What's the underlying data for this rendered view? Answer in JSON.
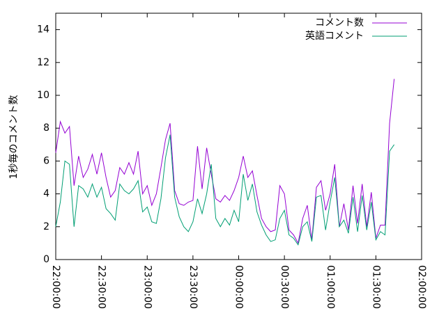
{
  "chart_data": {
    "type": "line",
    "y_label": "1秒毎のコメント数",
    "x": [
      "22:00:00",
      "22:03:00",
      "22:06:00",
      "22:09:00",
      "22:12:00",
      "22:15:00",
      "22:18:00",
      "22:21:00",
      "22:24:00",
      "22:27:00",
      "22:30:00",
      "22:33:00",
      "22:36:00",
      "22:39:00",
      "22:42:00",
      "22:45:00",
      "22:48:00",
      "22:51:00",
      "22:54:00",
      "22:57:00",
      "23:00:00",
      "23:03:00",
      "23:06:00",
      "23:09:00",
      "23:12:00",
      "23:15:00",
      "23:18:00",
      "23:21:00",
      "23:24:00",
      "23:27:00",
      "23:30:00",
      "23:33:00",
      "23:36:00",
      "23:39:00",
      "23:42:00",
      "23:45:00",
      "23:48:00",
      "23:51:00",
      "23:54:00",
      "23:57:00",
      "00:00:00",
      "00:03:00",
      "00:06:00",
      "00:09:00",
      "00:12:00",
      "00:15:00",
      "00:18:00",
      "00:21:00",
      "00:24:00",
      "00:27:00",
      "00:30:00",
      "00:33:00",
      "00:36:00",
      "00:39:00",
      "00:42:00",
      "00:45:00",
      "00:48:00",
      "00:51:00",
      "00:54:00",
      "00:57:00",
      "01:00:00",
      "01:03:00",
      "01:06:00",
      "01:09:00",
      "01:12:00",
      "01:15:00",
      "01:18:00",
      "01:21:00",
      "01:24:00",
      "01:27:00",
      "01:30:00",
      "01:33:00",
      "01:36:00",
      "01:39:00",
      "01:42:00"
    ],
    "series": [
      {
        "name": "コメント数",
        "color": "#9400d3",
        "values": [
          6.5,
          8.4,
          7.7,
          8.1,
          4.5,
          6.3,
          5.0,
          5.5,
          6.4,
          5.2,
          6.5,
          5.0,
          3.8,
          4.2,
          5.6,
          5.2,
          5.9,
          5.2,
          6.6,
          4.0,
          4.5,
          3.3,
          4.0,
          5.6,
          7.3,
          8.3,
          4.2,
          3.4,
          3.3,
          3.5,
          3.6,
          6.9,
          4.3,
          6.8,
          5.2,
          3.7,
          3.5,
          3.9,
          3.6,
          4.2,
          5.0,
          6.3,
          5.0,
          5.4,
          3.9,
          2.5,
          2.0,
          1.7,
          1.8,
          4.5,
          4.0,
          1.8,
          1.5,
          1.0,
          2.5,
          3.3,
          1.2,
          4.4,
          4.8,
          3.0,
          4.0,
          5.8,
          2.0,
          3.4,
          1.8,
          4.5,
          2.2,
          4.6,
          2.0,
          4.1,
          1.3,
          2.1,
          2.1,
          8.3,
          11.0
        ]
      },
      {
        "name": "英語コメント",
        "color": "#009e73",
        "values": [
          2.0,
          3.5,
          6.0,
          5.8,
          2.0,
          4.5,
          4.3,
          3.8,
          4.6,
          3.8,
          4.4,
          3.1,
          2.8,
          2.4,
          4.6,
          4.2,
          4.0,
          4.3,
          4.8,
          2.9,
          3.2,
          2.3,
          2.2,
          3.7,
          6.2,
          7.6,
          3.8,
          2.6,
          2.0,
          1.7,
          2.3,
          3.7,
          2.8,
          4.0,
          5.8,
          2.5,
          2.0,
          2.5,
          2.1,
          3.0,
          2.3,
          5.2,
          3.6,
          4.6,
          2.9,
          2.1,
          1.5,
          1.1,
          1.2,
          2.5,
          3.0,
          1.5,
          1.3,
          0.9,
          2.0,
          2.3,
          1.1,
          3.8,
          3.9,
          1.8,
          3.5,
          5.0,
          2.0,
          2.4,
          1.6,
          3.8,
          1.7,
          3.9,
          1.8,
          3.5,
          1.2,
          1.7,
          1.5,
          6.6,
          7.0
        ]
      }
    ],
    "xlim": [
      "22:00:00",
      "02:00:00"
    ],
    "xticks": [
      "22:00:00",
      "22:30:00",
      "23:00:00",
      "23:30:00",
      "00:00:00",
      "00:30:00",
      "01:00:00",
      "01:30:00",
      "02:00:00"
    ],
    "ylim": [
      0,
      15
    ],
    "yticks": [
      0,
      2,
      4,
      6,
      8,
      10,
      12,
      14
    ],
    "legend": "top-right"
  }
}
